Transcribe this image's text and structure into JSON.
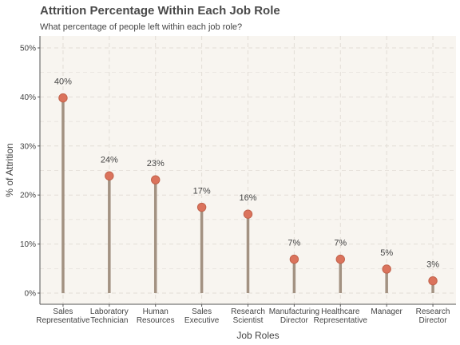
{
  "chart_data": {
    "type": "lollipop",
    "title": "Attrition Percentage Within Each Job Role",
    "subtitle": "What percentage of people left within each job role?",
    "xlabel": "Job Roles",
    "ylabel": "% of Attrition",
    "ylim": [
      0,
      52
    ],
    "yticks": [
      0,
      10,
      20,
      30,
      40,
      50
    ],
    "ytick_suffix": "%",
    "grid": true,
    "categories": [
      [
        "Sales",
        "Representative"
      ],
      [
        "Laboratory",
        "Technician"
      ],
      [
        "Human",
        "Resources"
      ],
      [
        "Sales",
        "Executive"
      ],
      [
        "Research",
        "Scientist"
      ],
      [
        "Manufacturing",
        "Director"
      ],
      [
        "Healthcare",
        "Representative"
      ],
      [
        "Manager"
      ],
      [
        "Research",
        "Director"
      ]
    ],
    "values": [
      39.8,
      23.9,
      23.1,
      17.5,
      16.1,
      6.9,
      6.9,
      4.9,
      2.5
    ],
    "labels": [
      "40%",
      "24%",
      "23%",
      "17%",
      "16%",
      "7%",
      "7%",
      "5%",
      "3%"
    ],
    "colors": {
      "panel": "#f8f5f0",
      "grid": "#e2ddd6",
      "stem": "#a39282",
      "point": "#db735c",
      "point_edge": "#c0624b",
      "axis": "#555555"
    }
  }
}
